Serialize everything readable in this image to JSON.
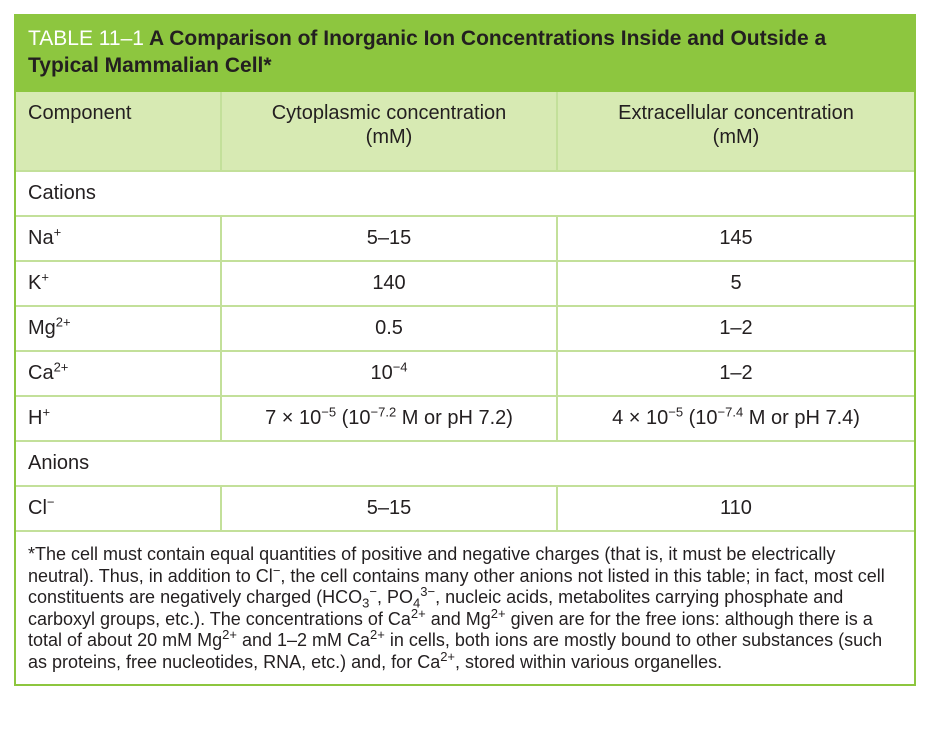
{
  "table_label": "TABLE 11–1",
  "title": "A Comparison of Inorganic Ion Concentrations Inside and Outside a Typical Mammalian Cell*",
  "headers": [
    [
      "Component"
    ],
    [
      "Cytoplasmic concentration",
      "(mM)"
    ],
    [
      "Extracellular concentration",
      "(mM)"
    ]
  ],
  "rows": [
    {
      "section": "Cations"
    },
    {
      "cells": [
        [
          "Na",
          {
            "sup": "+"
          }
        ],
        [
          "5–15"
        ],
        [
          "145"
        ]
      ]
    },
    {
      "cells": [
        [
          "K",
          {
            "sup": "+"
          }
        ],
        [
          "140"
        ],
        [
          "5"
        ]
      ]
    },
    {
      "cells": [
        [
          "Mg",
          {
            "sup": "2+"
          }
        ],
        [
          "0.5"
        ],
        [
          "1–2"
        ]
      ]
    },
    {
      "cells": [
        [
          "Ca",
          {
            "sup": "2+"
          }
        ],
        [
          "10",
          {
            "sup": "−4"
          }
        ],
        [
          "1–2"
        ]
      ]
    },
    {
      "cells": [
        [
          "H",
          {
            "sup": "+"
          }
        ],
        [
          "7 × 10",
          {
            "sup": "−5"
          },
          " (10",
          {
            "sup": "−7.2"
          },
          " M or pH 7.2)"
        ],
        [
          "4 × 10",
          {
            "sup": "−5"
          },
          " (10",
          {
            "sup": "−7.4"
          },
          " M or pH 7.4)"
        ]
      ]
    },
    {
      "section": "Anions"
    },
    {
      "cells": [
        [
          "Cl",
          {
            "sup": "−"
          }
        ],
        [
          "5–15"
        ],
        [
          "110"
        ]
      ]
    }
  ],
  "footnote": [
    "*The cell must contain equal quantities of positive and negative charges (that is, it must be electrically neutral). Thus, in addition to Cl",
    {
      "sup": "−"
    },
    ", the cell contains many other anions not listed in this table; in fact, most cell constituents are negatively charged (HCO",
    {
      "sub": "3"
    },
    {
      "sup": "−"
    },
    ", PO",
    {
      "sub": "4"
    },
    {
      "sup": "3−"
    },
    ", nucleic acids, metabolites carrying phosphate and carboxyl groups, etc.). The concentrations of Ca",
    {
      "sup": "2+"
    },
    " and Mg",
    {
      "sup": "2+"
    },
    " given are for the free ions: although there is a total of about 20 mM Mg",
    {
      "sup": "2+"
    },
    " and 1–2 mM Ca",
    {
      "sup": "2+"
    },
    " in cells, both ions are mostly bound to other substances (such as proteins, free nucleotides, RNA, etc.) and, for Ca",
    {
      "sup": "2+"
    },
    ", stored within various organelles."
  ]
}
